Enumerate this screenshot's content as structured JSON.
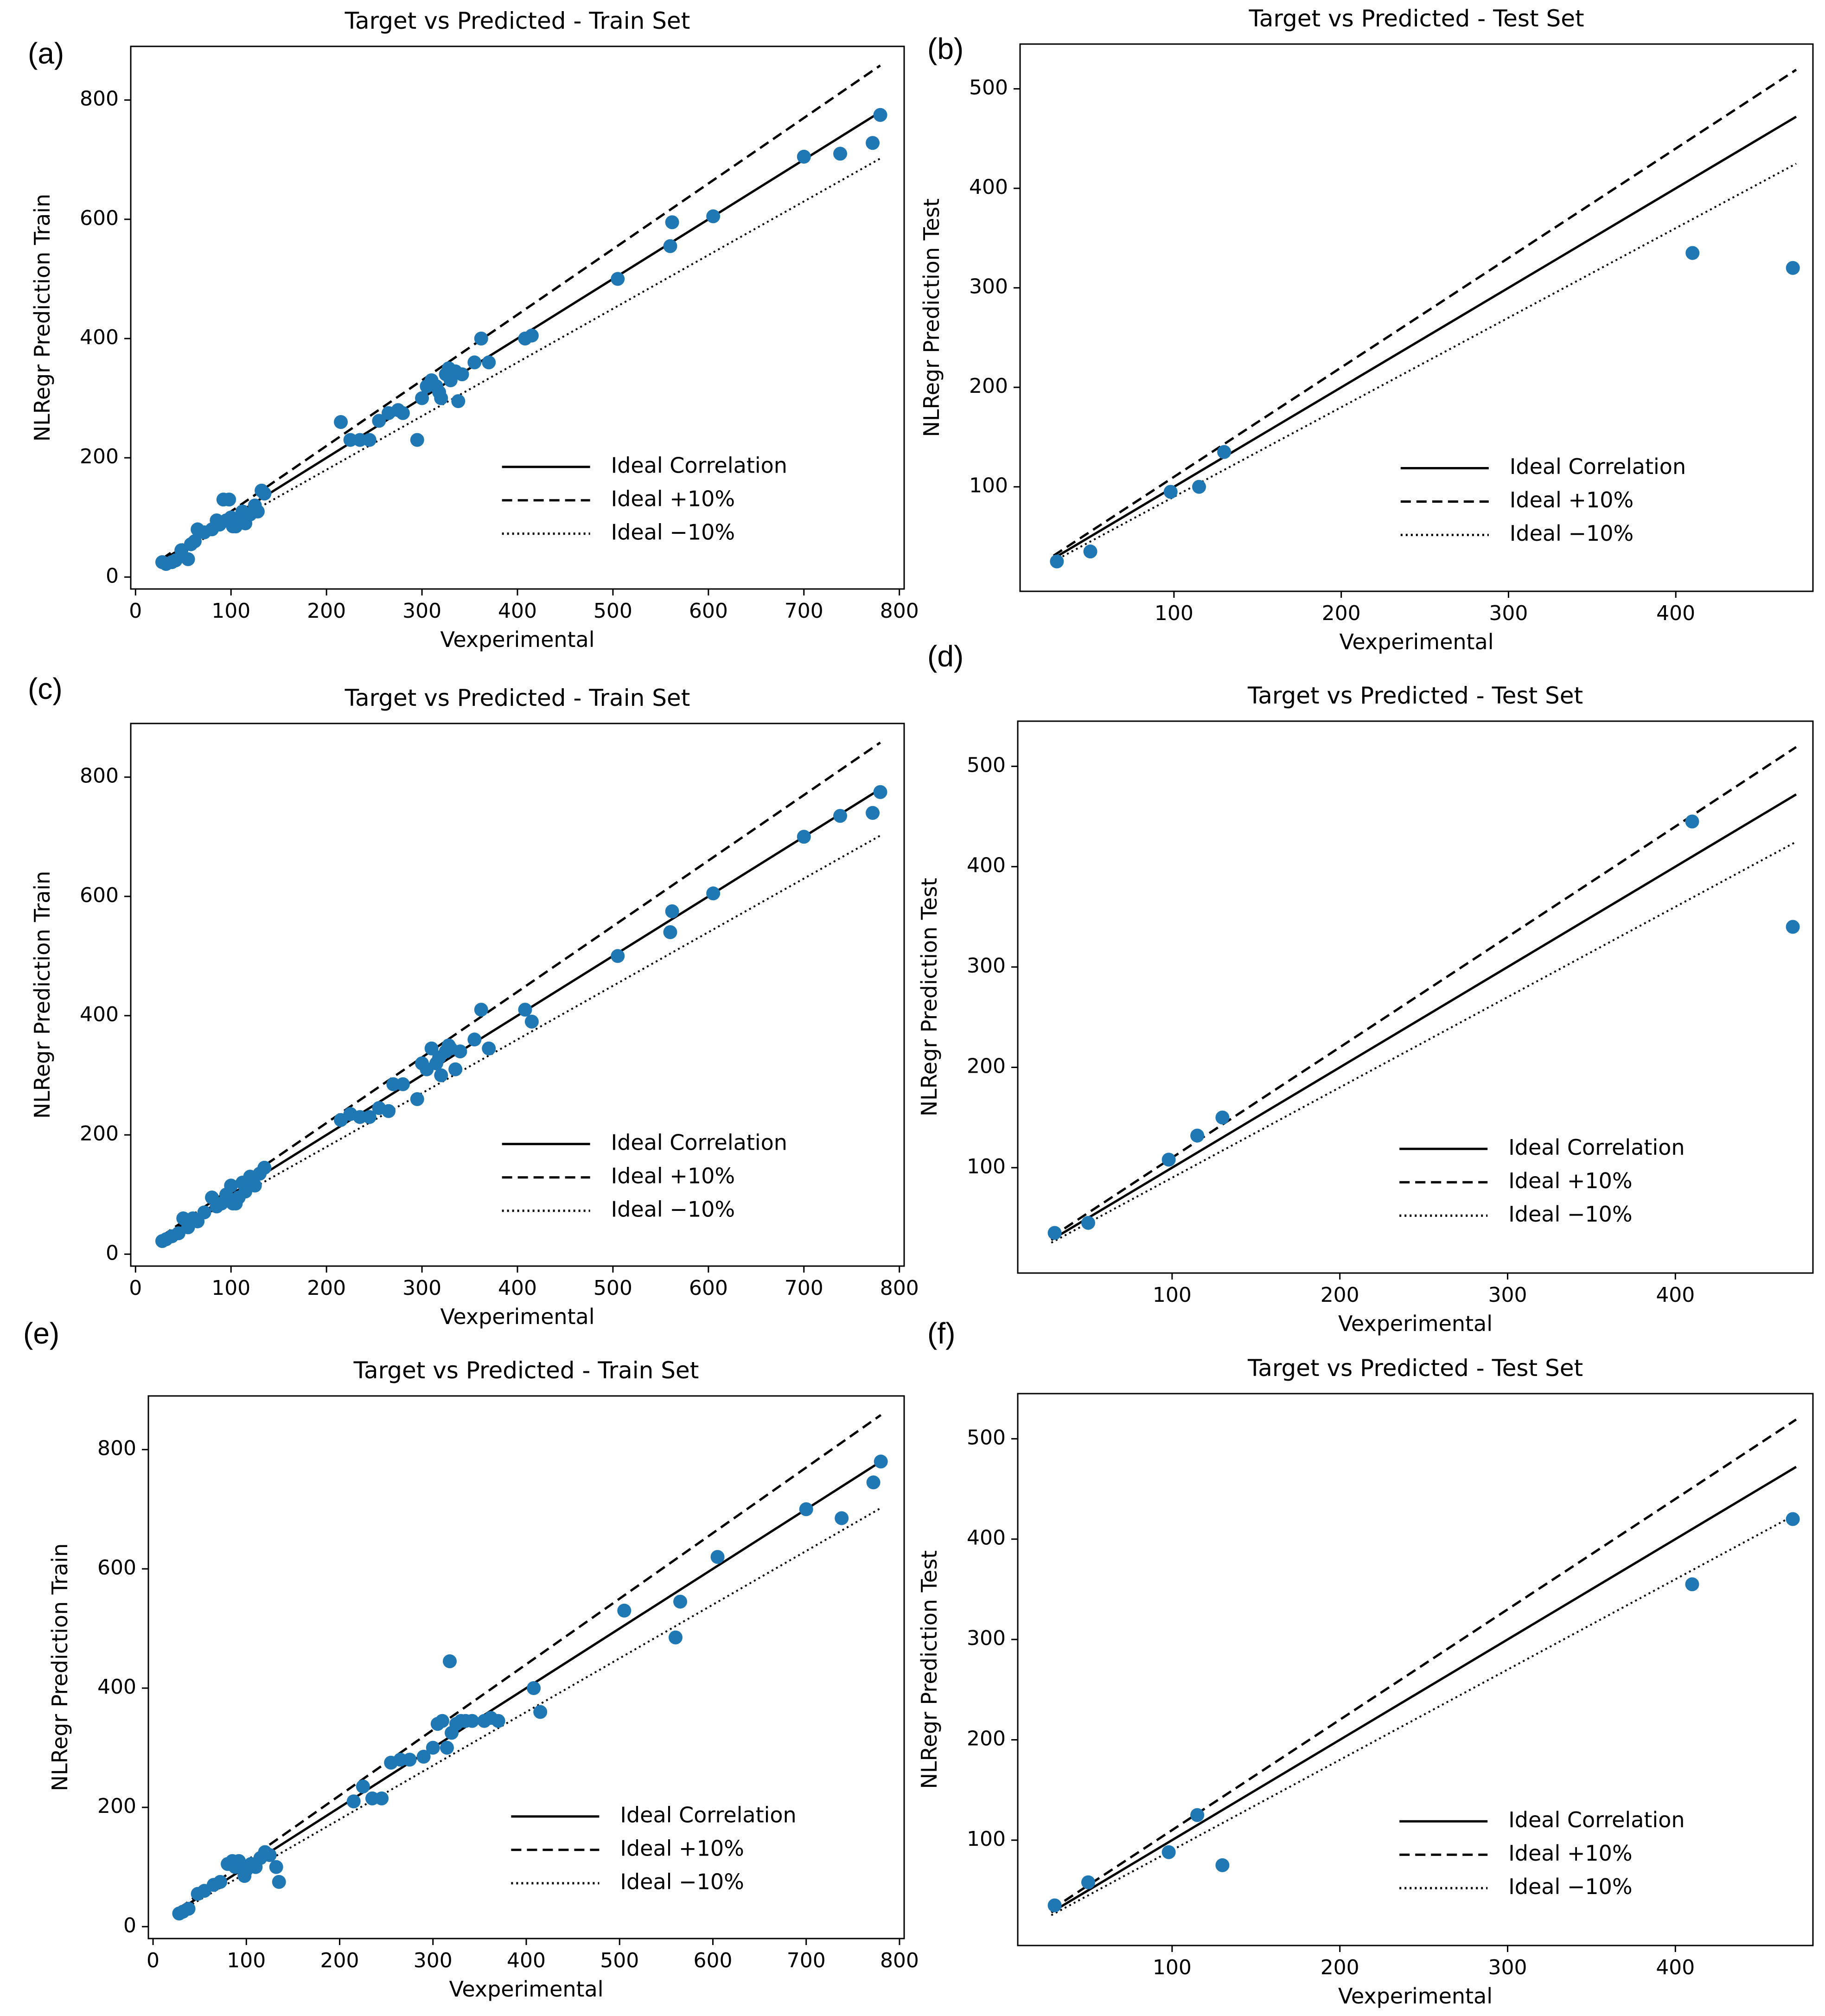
{
  "figure": {
    "colors": {
      "point": "#1f77b4",
      "line": "#000000",
      "axis": "#000000"
    }
  },
  "chart_data": [
    {
      "type": "scatter",
      "panel_label": "(a)",
      "title": "Target vs Predicted - Train Set",
      "xlabel": "Vexperimental",
      "ylabel": "NLRegr Prediction Train",
      "xlim": [
        -5,
        805
      ],
      "ylim": [
        -20,
        890
      ],
      "xticks": [
        0,
        100,
        200,
        300,
        400,
        500,
        600,
        700,
        800
      ],
      "yticks": [
        0,
        200,
        400,
        600,
        800
      ],
      "ideal_range": [
        28,
        780
      ],
      "legend": [
        "Ideal Correlation",
        "Ideal +10%",
        "Ideal −10%"
      ],
      "points": [
        [
          28,
          25
        ],
        [
          32,
          22
        ],
        [
          38,
          25
        ],
        [
          42,
          28
        ],
        [
          48,
          45
        ],
        [
          55,
          30
        ],
        [
          58,
          55
        ],
        [
          62,
          60
        ],
        [
          65,
          80
        ],
        [
          72,
          75
        ],
        [
          80,
          80
        ],
        [
          85,
          95
        ],
        [
          88,
          88
        ],
        [
          92,
          130
        ],
        [
          95,
          95
        ],
        [
          98,
          130
        ],
        [
          100,
          100
        ],
        [
          102,
          85
        ],
        [
          105,
          85
        ],
        [
          108,
          95
        ],
        [
          112,
          110
        ],
        [
          115,
          90
        ],
        [
          120,
          105
        ],
        [
          125,
          120
        ],
        [
          128,
          110
        ],
        [
          132,
          145
        ],
        [
          135,
          140
        ],
        [
          215,
          260
        ],
        [
          225,
          230
        ],
        [
          235,
          230
        ],
        [
          245,
          230
        ],
        [
          255,
          262
        ],
        [
          265,
          275
        ],
        [
          275,
          280
        ],
        [
          280,
          275
        ],
        [
          295,
          230
        ],
        [
          300,
          300
        ],
        [
          305,
          320
        ],
        [
          310,
          330
        ],
        [
          315,
          320
        ],
        [
          318,
          310
        ],
        [
          320,
          300
        ],
        [
          325,
          340
        ],
        [
          328,
          350
        ],
        [
          330,
          330
        ],
        [
          335,
          345
        ],
        [
          338,
          295
        ],
        [
          342,
          340
        ],
        [
          355,
          360
        ],
        [
          362,
          400
        ],
        [
          370,
          360
        ],
        [
          408,
          400
        ],
        [
          415,
          405
        ],
        [
          505,
          500
        ],
        [
          560,
          555
        ],
        [
          562,
          595
        ],
        [
          605,
          605
        ],
        [
          700,
          705
        ],
        [
          738,
          710
        ],
        [
          772,
          728
        ],
        [
          780,
          775
        ]
      ]
    },
    {
      "type": "scatter",
      "panel_label": "(b)",
      "title": "Target vs Predicted - Test Set",
      "xlabel": "Vexperimental",
      "ylabel": "NLRegr Prediction Test",
      "xlim": [
        8,
        482
      ],
      "ylim": [
        -5,
        545
      ],
      "xticks": [
        100,
        200,
        300,
        400
      ],
      "yticks": [
        100,
        200,
        300,
        400,
        500
      ],
      "ideal_range": [
        28,
        472
      ],
      "legend": [
        "Ideal Correlation",
        "Ideal +10%",
        "Ideal −10%"
      ],
      "points": [
        [
          30,
          25
        ],
        [
          50,
          35
        ],
        [
          98,
          95
        ],
        [
          115,
          100
        ],
        [
          130,
          135
        ],
        [
          410,
          335
        ],
        [
          470,
          320
        ]
      ]
    },
    {
      "type": "scatter",
      "panel_label": "(c)",
      "title": "Target vs Predicted - Train Set",
      "xlabel": "Vexperimental",
      "ylabel": "NLRegr Prediction Train",
      "xlim": [
        -5,
        805
      ],
      "ylim": [
        -20,
        890
      ],
      "xticks": [
        0,
        100,
        200,
        300,
        400,
        500,
        600,
        700,
        800
      ],
      "yticks": [
        0,
        200,
        400,
        600,
        800
      ],
      "ideal_range": [
        28,
        780
      ],
      "legend": [
        "Ideal Correlation",
        "Ideal +10%",
        "Ideal −10%"
      ],
      "points": [
        [
          28,
          22
        ],
        [
          32,
          25
        ],
        [
          38,
          30
        ],
        [
          45,
          35
        ],
        [
          50,
          60
        ],
        [
          55,
          45
        ],
        [
          60,
          60
        ],
        [
          65,
          55
        ],
        [
          72,
          70
        ],
        [
          80,
          95
        ],
        [
          85,
          80
        ],
        [
          90,
          85
        ],
        [
          95,
          100
        ],
        [
          100,
          115
        ],
        [
          102,
          85
        ],
        [
          105,
          85
        ],
        [
          108,
          95
        ],
        [
          112,
          120
        ],
        [
          115,
          105
        ],
        [
          120,
          130
        ],
        [
          125,
          115
        ],
        [
          130,
          135
        ],
        [
          135,
          145
        ],
        [
          215,
          225
        ],
        [
          225,
          235
        ],
        [
          235,
          230
        ],
        [
          245,
          230
        ],
        [
          255,
          245
        ],
        [
          265,
          240
        ],
        [
          270,
          285
        ],
        [
          280,
          285
        ],
        [
          295,
          260
        ],
        [
          300,
          320
        ],
        [
          305,
          310
        ],
        [
          310,
          345
        ],
        [
          315,
          320
        ],
        [
          318,
          330
        ],
        [
          320,
          300
        ],
        [
          325,
          340
        ],
        [
          328,
          350
        ],
        [
          330,
          345
        ],
        [
          335,
          310
        ],
        [
          340,
          340
        ],
        [
          355,
          360
        ],
        [
          362,
          410
        ],
        [
          370,
          345
        ],
        [
          408,
          410
        ],
        [
          415,
          390
        ],
        [
          505,
          500
        ],
        [
          560,
          540
        ],
        [
          562,
          575
        ],
        [
          605,
          605
        ],
        [
          700,
          700
        ],
        [
          738,
          735
        ],
        [
          772,
          740
        ],
        [
          780,
          775
        ]
      ]
    },
    {
      "type": "scatter",
      "panel_label": "(d)",
      "title": "Target vs Predicted - Test Set",
      "xlabel": "Vexperimental",
      "ylabel": "NLRegr Prediction Test",
      "xlim": [
        8,
        482
      ],
      "ylim": [
        -5,
        545
      ],
      "xticks": [
        100,
        200,
        300,
        400
      ],
      "yticks": [
        100,
        200,
        300,
        400,
        500
      ],
      "ideal_range": [
        28,
        472
      ],
      "legend": [
        "Ideal Correlation",
        "Ideal +10%",
        "Ideal −10%"
      ],
      "points": [
        [
          30,
          35
        ],
        [
          50,
          45
        ],
        [
          98,
          108
        ],
        [
          115,
          132
        ],
        [
          130,
          150
        ],
        [
          410,
          445
        ],
        [
          470,
          340
        ]
      ]
    },
    {
      "type": "scatter",
      "panel_label": "(e)",
      "title": "Target vs Predicted - Train Set",
      "xlabel": "Vexperimental",
      "ylabel": "NLRegr Prediction Train",
      "xlim": [
        -5,
        805
      ],
      "ylim": [
        -20,
        890
      ],
      "xticks": [
        0,
        100,
        200,
        300,
        400,
        500,
        600,
        700,
        800
      ],
      "yticks": [
        0,
        200,
        400,
        600,
        800
      ],
      "ideal_range": [
        28,
        780
      ],
      "legend": [
        "Ideal Correlation",
        "Ideal +10%",
        "Ideal −10%"
      ],
      "points": [
        [
          28,
          22
        ],
        [
          32,
          25
        ],
        [
          38,
          30
        ],
        [
          48,
          55
        ],
        [
          55,
          60
        ],
        [
          65,
          70
        ],
        [
          72,
          75
        ],
        [
          80,
          105
        ],
        [
          85,
          110
        ],
        [
          88,
          100
        ],
        [
          92,
          110
        ],
        [
          98,
          85
        ],
        [
          100,
          95
        ],
        [
          105,
          105
        ],
        [
          110,
          100
        ],
        [
          115,
          115
        ],
        [
          120,
          125
        ],
        [
          125,
          120
        ],
        [
          132,
          100
        ],
        [
          135,
          75
        ],
        [
          215,
          210
        ],
        [
          225,
          235
        ],
        [
          235,
          215
        ],
        [
          245,
          215
        ],
        [
          255,
          275
        ],
        [
          265,
          280
        ],
        [
          275,
          280
        ],
        [
          290,
          285
        ],
        [
          300,
          300
        ],
        [
          305,
          340
        ],
        [
          310,
          345
        ],
        [
          315,
          300
        ],
        [
          318,
          445
        ],
        [
          320,
          325
        ],
        [
          325,
          340
        ],
        [
          330,
          345
        ],
        [
          335,
          345
        ],
        [
          342,
          345
        ],
        [
          355,
          345
        ],
        [
          362,
          350
        ],
        [
          370,
          345
        ],
        [
          408,
          400
        ],
        [
          415,
          360
        ],
        [
          505,
          530
        ],
        [
          560,
          485
        ],
        [
          565,
          545
        ],
        [
          605,
          620
        ],
        [
          700,
          700
        ],
        [
          738,
          685
        ],
        [
          772,
          745
        ],
        [
          780,
          780
        ]
      ]
    },
    {
      "type": "scatter",
      "panel_label": "(f)",
      "title": "Target vs Predicted - Test Set",
      "xlabel": "Vexperimental",
      "ylabel": "NLRegr Prediction Test",
      "xlim": [
        8,
        482
      ],
      "ylim": [
        -5,
        545
      ],
      "xticks": [
        100,
        200,
        300,
        400
      ],
      "yticks": [
        100,
        200,
        300,
        400,
        500
      ],
      "ideal_range": [
        28,
        472
      ],
      "legend": [
        "Ideal Correlation",
        "Ideal +10%",
        "Ideal −10%"
      ],
      "points": [
        [
          30,
          35
        ],
        [
          50,
          58
        ],
        [
          98,
          88
        ],
        [
          115,
          125
        ],
        [
          130,
          75
        ],
        [
          410,
          355
        ],
        [
          470,
          420
        ]
      ]
    }
  ]
}
